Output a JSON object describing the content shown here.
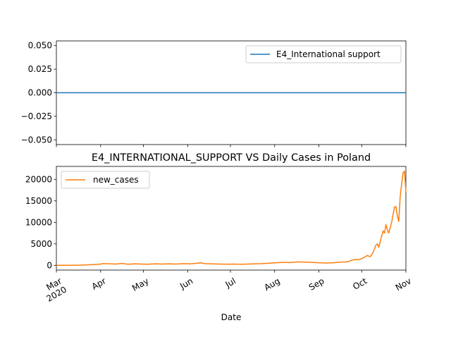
{
  "colors": {
    "series_top": "#1f77b4",
    "series_bottom": "#ff7f0e",
    "axis": "#000000",
    "background": "#ffffff",
    "legend_border": "#cccccc"
  },
  "chart_data": [
    {
      "type": "line",
      "title": "",
      "xlabel": "",
      "ylabel": "",
      "ylim": [
        -0.055,
        0.055
      ],
      "y_ticks": [
        -0.05,
        -0.025,
        0.0,
        0.025,
        0.05
      ],
      "y_tick_labels": [
        "−0.050",
        "−0.025",
        "0.000",
        "0.025",
        "0.050"
      ],
      "x_tick_labels_shown": false,
      "grid": false,
      "legend_position": "top-right",
      "series": [
        {
          "name": "E4_International support",
          "x": [
            "2020-03-01",
            "2020-11-01"
          ],
          "values": [
            0,
            0
          ]
        }
      ]
    },
    {
      "type": "line",
      "title": "E4_INTERNATIONAL_SUPPORT VS Daily Cases in Poland",
      "xlabel": "Date",
      "ylabel": "",
      "xlim": [
        "2020-03-01",
        "2020-11-01"
      ],
      "ylim": [
        -1100,
        23000
      ],
      "y_ticks": [
        0,
        5000,
        10000,
        15000,
        20000
      ],
      "y_tick_labels": [
        "0",
        "5000",
        "10000",
        "15000",
        "20000"
      ],
      "x_ticks": [
        "2020-03-01",
        "2020-04-01",
        "2020-05-01",
        "2020-06-01",
        "2020-07-01",
        "2020-08-01",
        "2020-09-01",
        "2020-10-01",
        "2020-11-01"
      ],
      "x_tick_labels": [
        "Mar\n2020",
        "Apr",
        "May",
        "Jun",
        "Jul",
        "Aug",
        "Sep",
        "Oct",
        "Nov"
      ],
      "grid": false,
      "legend_position": "top-left",
      "series": [
        {
          "name": "new_cases",
          "points": [
            [
              "2020-03-01",
              0
            ],
            [
              "2020-03-08",
              5
            ],
            [
              "2020-03-15",
              30
            ],
            [
              "2020-03-20",
              60
            ],
            [
              "2020-03-25",
              150
            ],
            [
              "2020-03-31",
              250
            ],
            [
              "2020-04-03",
              400
            ],
            [
              "2020-04-08",
              350
            ],
            [
              "2020-04-12",
              300
            ],
            [
              "2020-04-16",
              450
            ],
            [
              "2020-04-20",
              250
            ],
            [
              "2020-04-25",
              350
            ],
            [
              "2020-04-30",
              300
            ],
            [
              "2020-05-04",
              250
            ],
            [
              "2020-05-09",
              350
            ],
            [
              "2020-05-14",
              300
            ],
            [
              "2020-05-19",
              350
            ],
            [
              "2020-05-24",
              300
            ],
            [
              "2020-05-29",
              400
            ],
            [
              "2020-06-03",
              350
            ],
            [
              "2020-06-08",
              500
            ],
            [
              "2020-06-10",
              600
            ],
            [
              "2020-06-13",
              400
            ],
            [
              "2020-06-18",
              350
            ],
            [
              "2020-06-23",
              300
            ],
            [
              "2020-06-28",
              280
            ],
            [
              "2020-07-03",
              300
            ],
            [
              "2020-07-08",
              250
            ],
            [
              "2020-07-13",
              300
            ],
            [
              "2020-07-18",
              350
            ],
            [
              "2020-07-23",
              400
            ],
            [
              "2020-07-28",
              500
            ],
            [
              "2020-08-02",
              600
            ],
            [
              "2020-08-07",
              700
            ],
            [
              "2020-08-12",
              650
            ],
            [
              "2020-08-17",
              800
            ],
            [
              "2020-08-22",
              750
            ],
            [
              "2020-08-27",
              700
            ],
            [
              "2020-09-01",
              600
            ],
            [
              "2020-09-06",
              550
            ],
            [
              "2020-09-11",
              600
            ],
            [
              "2020-09-16",
              750
            ],
            [
              "2020-09-21",
              800
            ],
            [
              "2020-09-24",
              1200
            ],
            [
              "2020-09-27",
              1400
            ],
            [
              "2020-09-29",
              1300
            ],
            [
              "2020-10-02",
              1700
            ],
            [
              "2020-10-05",
              2300
            ],
            [
              "2020-10-07",
              2000
            ],
            [
              "2020-10-09",
              3000
            ],
            [
              "2020-10-11",
              4700
            ],
            [
              "2020-10-12",
              5000
            ],
            [
              "2020-10-13",
              4200
            ],
            [
              "2020-10-14",
              5500
            ],
            [
              "2020-10-16",
              8000
            ],
            [
              "2020-10-17",
              7500
            ],
            [
              "2020-10-18",
              9500
            ],
            [
              "2020-10-19",
              8300
            ],
            [
              "2020-10-20",
              7500
            ],
            [
              "2020-10-22",
              10000
            ],
            [
              "2020-10-24",
              13500
            ],
            [
              "2020-10-25",
              13700
            ],
            [
              "2020-10-26",
              11500
            ],
            [
              "2020-10-27",
              10200
            ],
            [
              "2020-10-28",
              16000
            ],
            [
              "2020-10-29",
              18800
            ],
            [
              "2020-10-30",
              21500
            ],
            [
              "2020-10-31",
              21900
            ],
            [
              "2020-11-01",
              17000
            ]
          ]
        }
      ]
    }
  ]
}
